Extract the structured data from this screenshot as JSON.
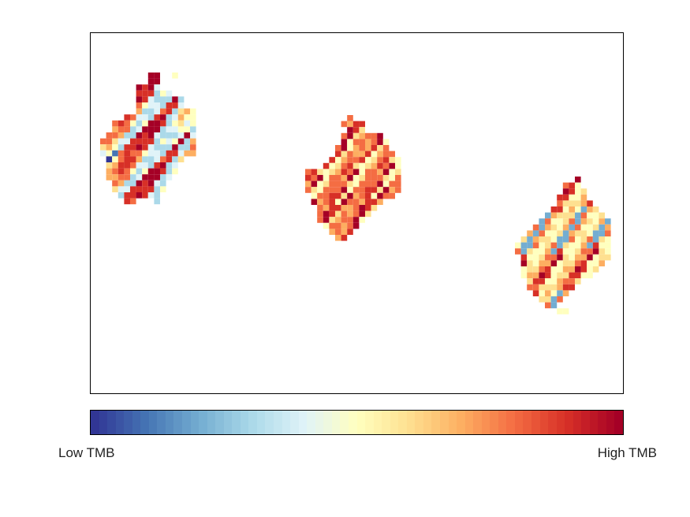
{
  "chart_data": {
    "type": "heatmap",
    "title": "",
    "xlabel": "",
    "ylabel": "",
    "grid": false,
    "colorbar": {
      "orientation": "horizontal",
      "position": "bottom",
      "low_label": "Low TMB",
      "high_label": "High TMB",
      "colormap": [
        "#313695",
        "#4575b4",
        "#74add1",
        "#abd9e9",
        "#e0f3f8",
        "#ffffbf",
        "#fee090",
        "#fdae61",
        "#f46d43",
        "#d73027",
        "#a50026"
      ]
    },
    "clusters": [
      {
        "rows": [
          "..........................",
          "..........................",
          "........##..##............",
          "........##................",
          "......##..####............",
          "......########............",
          "......##########..........",
          "......##########..........",
          "......############........",
          "..##..############........",
          "..################........",
          "..##############..........",
          "################..........",
          "################..........",
          "################..........",
          "##############............",
          "################..........",
          "..##########..##..........",
          "..##########..............",
          "..##########..##..........",
          "..########..##............",
          "....##..........",
          "....##....##............."
        ],
        "values": [
          [
            3,
            5,
            6,
            5,
            8,
            9,
            9,
            10,
            10,
            10,
            9,
            8,
            9,
            10,
            10,
            10
          ],
          [
            3,
            3,
            4,
            4,
            7,
            7,
            8,
            9,
            9,
            9,
            9,
            10,
            10,
            10,
            9,
            9
          ],
          [
            3,
            3,
            4,
            3,
            7,
            8,
            7,
            8,
            9,
            9,
            8,
            10,
            9,
            10,
            10,
            9
          ],
          [
            4,
            3,
            3,
            4,
            6,
            7,
            8,
            8,
            8,
            7,
            9,
            9,
            9,
            8,
            9,
            9
          ],
          [
            5,
            4,
            3,
            3,
            4,
            5,
            7,
            7,
            7,
            6,
            8,
            8,
            8,
            8,
            8,
            7
          ],
          [
            5,
            4,
            3,
            4,
            3,
            5,
            3,
            4,
            6,
            5,
            5,
            4,
            7,
            6,
            7,
            8
          ],
          [
            4,
            3,
            3,
            3,
            4,
            3,
            4,
            3,
            4,
            3,
            5,
            4,
            5,
            5,
            5,
            5
          ],
          [
            0,
            1,
            3,
            4,
            3,
            4,
            5,
            3,
            4,
            3,
            3,
            5,
            4,
            5,
            5,
            5
          ]
        ]
      },
      {
        "rows": [
          "x"
        ],
        "values": [
          [
            8,
            8,
            8,
            8,
            9,
            9,
            8,
            7,
            7,
            8,
            10,
            10,
            9,
            9,
            10,
            10
          ],
          [
            7,
            8,
            7,
            8,
            8,
            8,
            7,
            8,
            6,
            9,
            9,
            9,
            10,
            5,
            6,
            6
          ],
          [
            8,
            7,
            8,
            7,
            8,
            8,
            9,
            8,
            8,
            10,
            10,
            5,
            5,
            5,
            6,
            5
          ],
          [
            7,
            8,
            7,
            8,
            8,
            7,
            8,
            7,
            9,
            9,
            10,
            6,
            5,
            5,
            6,
            6
          ],
          [
            8,
            7,
            8,
            8,
            7,
            8,
            7,
            8,
            8,
            10,
            9,
            5,
            6,
            5,
            5,
            6
          ]
        ]
      },
      {
        "rows": [
          "x"
        ],
        "values": [
          [
            5,
            5,
            5,
            6,
            5,
            5,
            6,
            6,
            5,
            7,
            8,
            9,
            10,
            9,
            10,
            10
          ],
          [
            5,
            5,
            6,
            5,
            5,
            6,
            5,
            6,
            7,
            8,
            2,
            2,
            9,
            8,
            9,
            9
          ],
          [
            6,
            5,
            5,
            5,
            6,
            5,
            6,
            7,
            8,
            2,
            2,
            2,
            2,
            8,
            7,
            9
          ],
          [
            5,
            6,
            5,
            6,
            5,
            6,
            7,
            6,
            7,
            8,
            2,
            2,
            2,
            7,
            8,
            7
          ],
          [
            6,
            5,
            6,
            5,
            6,
            7,
            6,
            7,
            6,
            7,
            8,
            7,
            8,
            9,
            6,
            8
          ]
        ]
      }
    ]
  }
}
